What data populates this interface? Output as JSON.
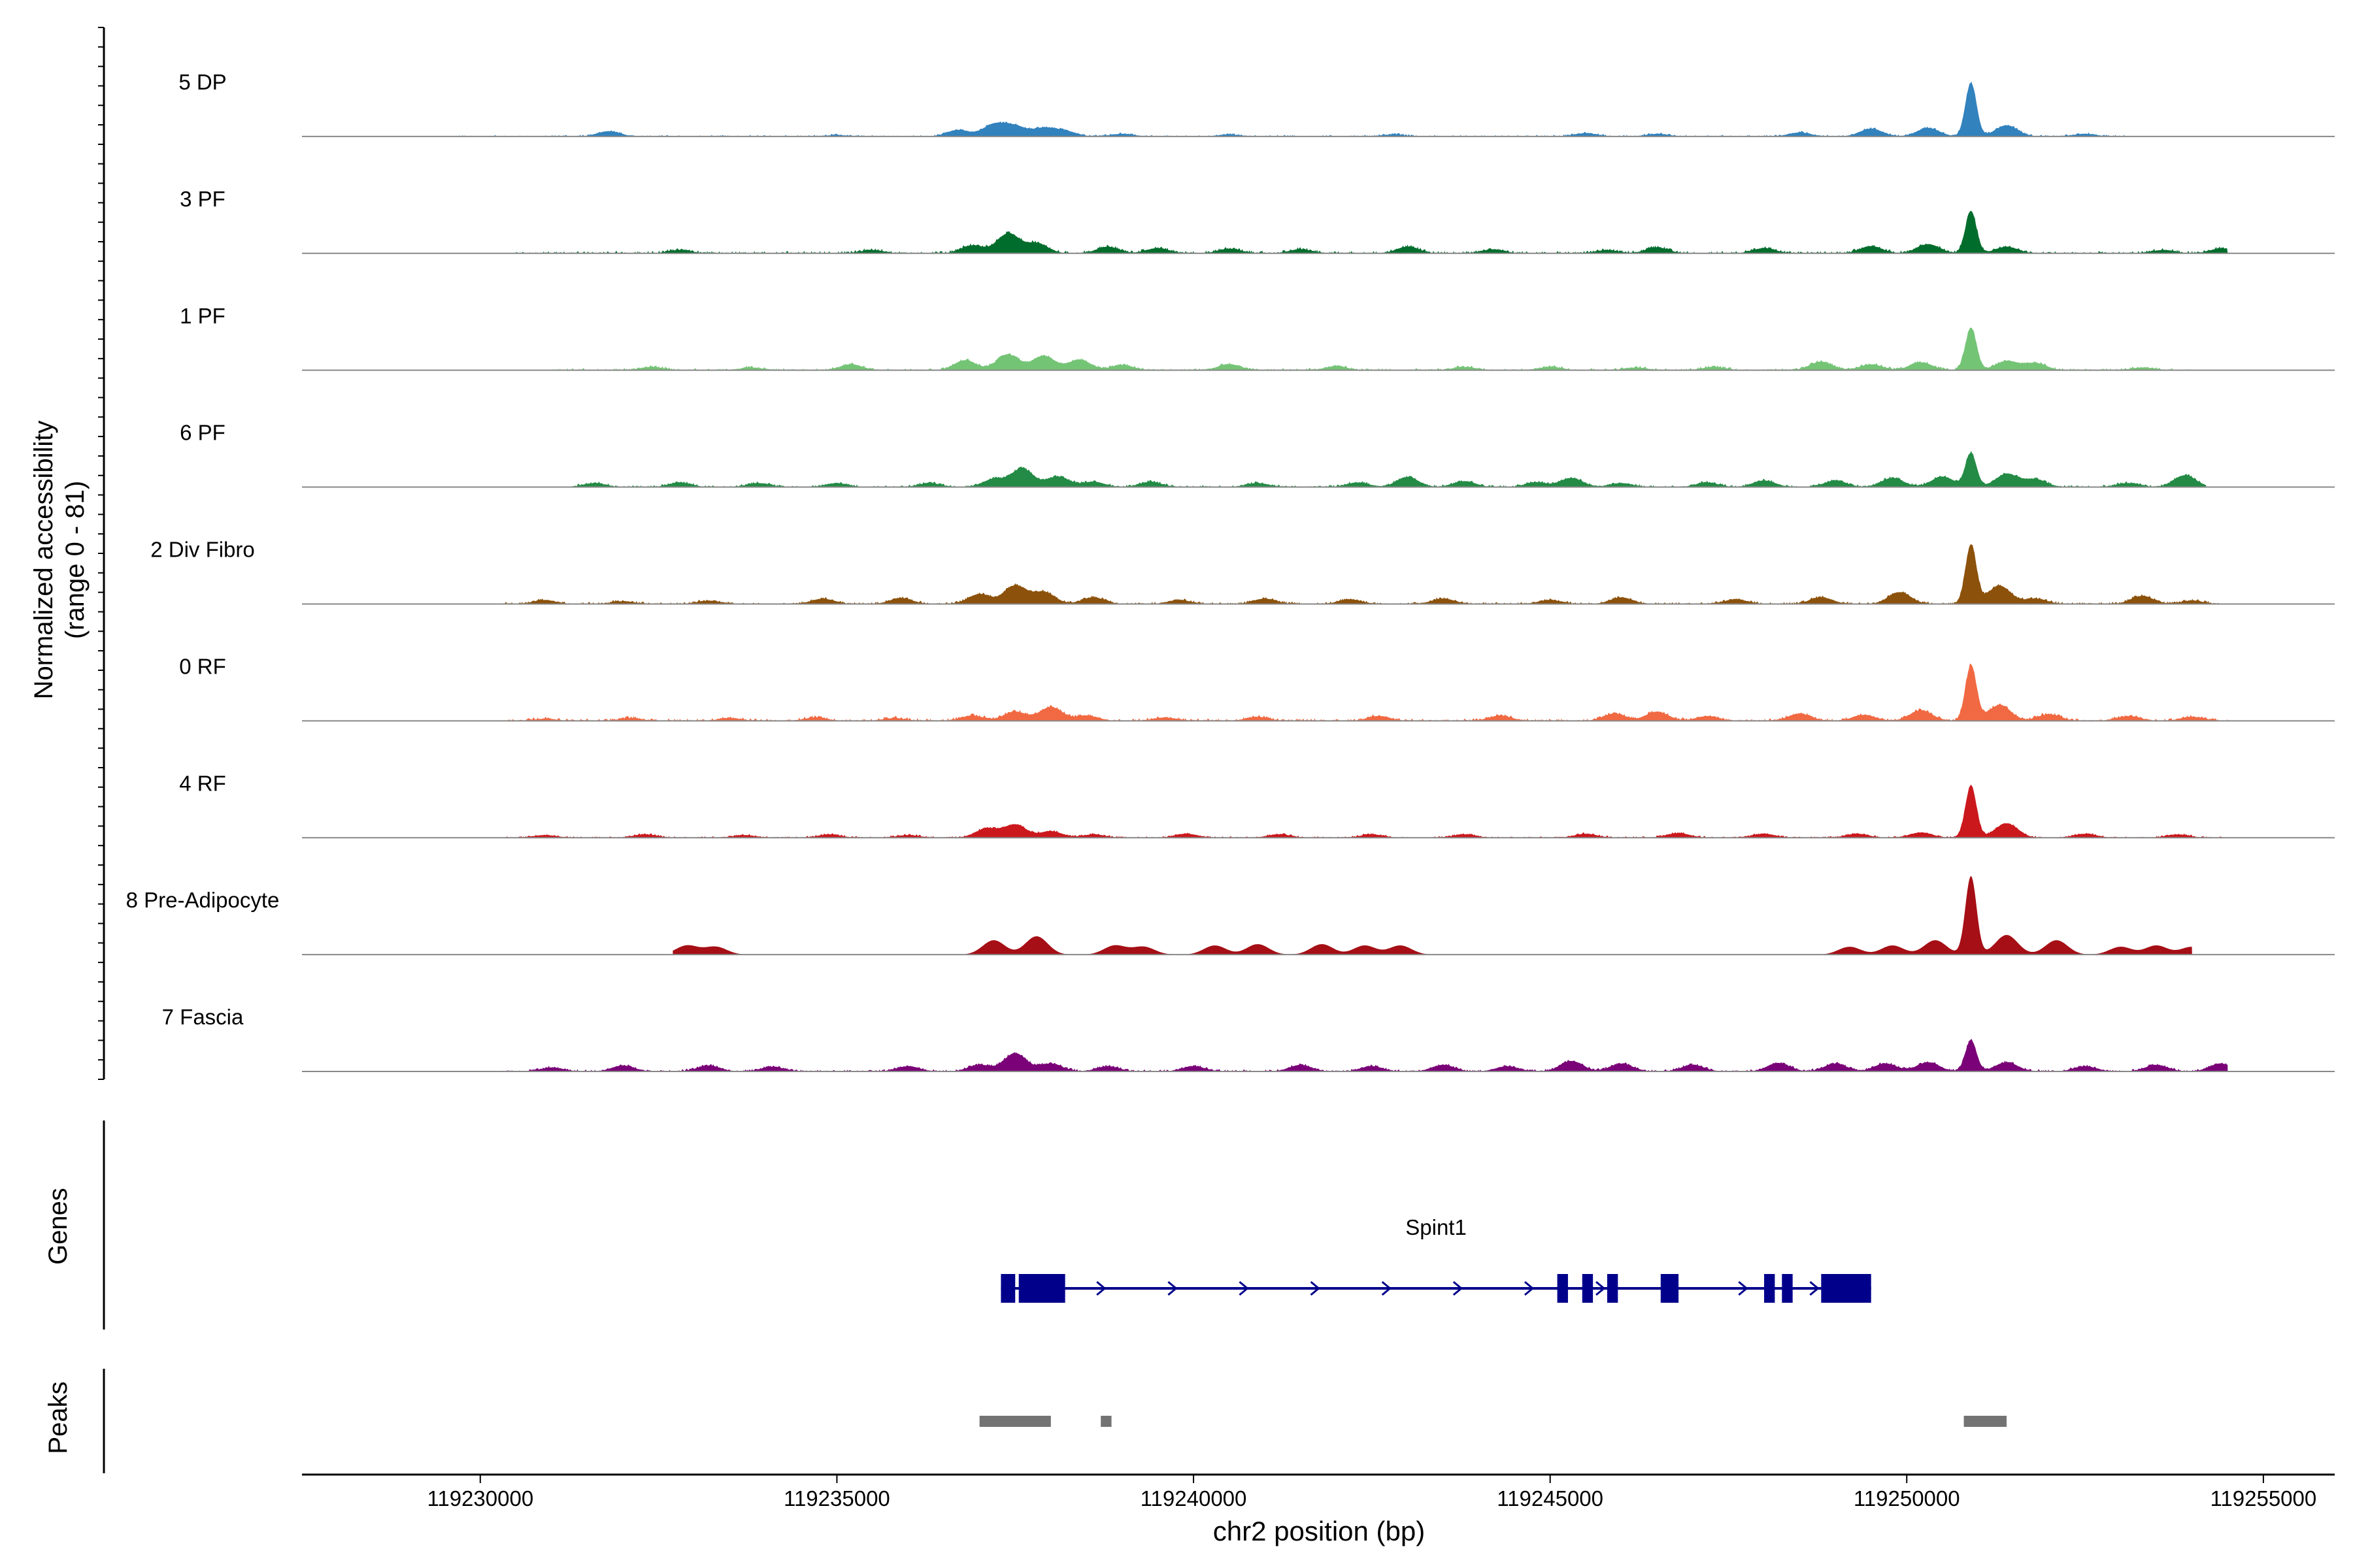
{
  "chart_data": {
    "type": "area",
    "title": "",
    "ylabel_line1": "Normalized accessibility",
    "ylabel_line2": "(range 0 - 81)",
    "xlabel": "chr2 position (bp)",
    "xlim": [
      119227500,
      119256000
    ],
    "xticks": [
      119230000,
      119235000,
      119240000,
      119245000,
      119250000,
      119255000
    ],
    "xtick_labels": [
      "119230000",
      "119235000",
      "119240000",
      "119245000",
      "119250000",
      "119255000"
    ],
    "track_range": [
      0,
      81
    ],
    "tracks": [
      {
        "name": "5 DP",
        "color": "#3182BD",
        "range": [
          119229700,
          119253100
        ],
        "baseline": 0.4,
        "peaks": [
          [
            119231800,
            8
          ],
          [
            119235000,
            2
          ],
          [
            119236700,
            10
          ],
          [
            119237200,
            18
          ],
          [
            119237500,
            15
          ],
          [
            119237900,
            12
          ],
          [
            119238200,
            8
          ],
          [
            119239000,
            4
          ],
          [
            119240500,
            3
          ],
          [
            119242800,
            3
          ],
          [
            119245500,
            5
          ],
          [
            119246500,
            4
          ],
          [
            119248500,
            6
          ],
          [
            119249500,
            12
          ],
          [
            119250300,
            13
          ],
          [
            119250900,
            82
          ],
          [
            119251400,
            17
          ],
          [
            119252500,
            4
          ]
        ]
      },
      {
        "name": "3 PF",
        "color": "#006D2C",
        "range": [
          119230500,
          119254500
        ],
        "baseline": 0.6,
        "peaks": [
          [
            119232800,
            5
          ],
          [
            119235500,
            5
          ],
          [
            119236900,
            12
          ],
          [
            119237400,
            30
          ],
          [
            119237800,
            15
          ],
          [
            119238800,
            10
          ],
          [
            119239500,
            8
          ],
          [
            119240500,
            7
          ],
          [
            119241500,
            6
          ],
          [
            119243000,
            10
          ],
          [
            119244200,
            6
          ],
          [
            119245800,
            5
          ],
          [
            119246500,
            9
          ],
          [
            119248000,
            8
          ],
          [
            119249500,
            11
          ],
          [
            119250300,
            14
          ],
          [
            119250900,
            65
          ],
          [
            119251400,
            10
          ],
          [
            119253600,
            5
          ],
          [
            119254400,
            7
          ]
        ]
      },
      {
        "name": "1 PF",
        "color": "#74C476",
        "range": [
          119231000,
          119254000
        ],
        "baseline": 0.5,
        "peaks": [
          [
            119232400,
            5
          ],
          [
            119233800,
            4
          ],
          [
            119235200,
            9
          ],
          [
            119236800,
            15
          ],
          [
            119237400,
            24
          ],
          [
            119237900,
            22
          ],
          [
            119238400,
            16
          ],
          [
            119239000,
            8
          ],
          [
            119240500,
            9
          ],
          [
            119242000,
            6
          ],
          [
            119243800,
            5
          ],
          [
            119245000,
            5
          ],
          [
            119246200,
            4
          ],
          [
            119247300,
            5
          ],
          [
            119248800,
            13
          ],
          [
            119249500,
            9
          ],
          [
            119250200,
            12
          ],
          [
            119250900,
            65
          ],
          [
            119251400,
            14
          ],
          [
            119251800,
            11
          ],
          [
            119253300,
            4
          ]
        ]
      },
      {
        "name": "6 PF",
        "color": "#238B45",
        "range": [
          119231200,
          119254200
        ],
        "baseline": 0.5,
        "peaks": [
          [
            119231600,
            6
          ],
          [
            119232800,
            7
          ],
          [
            119233900,
            6
          ],
          [
            119235000,
            6
          ],
          [
            119236300,
            6
          ],
          [
            119237200,
            12
          ],
          [
            119237600,
            28
          ],
          [
            119238100,
            16
          ],
          [
            119238600,
            8
          ],
          [
            119239400,
            8
          ],
          [
            119240900,
            6
          ],
          [
            119242300,
            7
          ],
          [
            119243000,
            15
          ],
          [
            119243800,
            9
          ],
          [
            119244800,
            7
          ],
          [
            119245300,
            14
          ],
          [
            119246000,
            6
          ],
          [
            119247200,
            7
          ],
          [
            119248000,
            10
          ],
          [
            119249000,
            10
          ],
          [
            119249800,
            14
          ],
          [
            119250500,
            16
          ],
          [
            119250900,
            52
          ],
          [
            119251400,
            20
          ],
          [
            119251800,
            12
          ],
          [
            119253100,
            6
          ],
          [
            119253900,
            18
          ]
        ]
      },
      {
        "name": "2 Div Fibro",
        "color": "#8C510A",
        "range": [
          119230300,
          119254500
        ],
        "baseline": 0.5,
        "peaks": [
          [
            119230900,
            6
          ],
          [
            119232000,
            4
          ],
          [
            119233200,
            5
          ],
          [
            119234800,
            8
          ],
          [
            119235900,
            9
          ],
          [
            119237000,
            15
          ],
          [
            119237500,
            28
          ],
          [
            119237900,
            18
          ],
          [
            119238600,
            10
          ],
          [
            119239800,
            6
          ],
          [
            119241000,
            8
          ],
          [
            119242200,
            7
          ],
          [
            119243500,
            8
          ],
          [
            119245000,
            6
          ],
          [
            119246000,
            10
          ],
          [
            119247600,
            7
          ],
          [
            119248800,
            10
          ],
          [
            119249900,
            18
          ],
          [
            119250900,
            90
          ],
          [
            119251300,
            28
          ],
          [
            119251800,
            8
          ],
          [
            119253300,
            12
          ],
          [
            119254000,
            5
          ]
        ]
      },
      {
        "name": "0 RF",
        "color": "#F16942",
        "range": [
          119230300,
          119254500
        ],
        "baseline": 0.6,
        "peaks": [
          [
            119230900,
            3
          ],
          [
            119232100,
            4
          ],
          [
            119233500,
            4
          ],
          [
            119234700,
            5
          ],
          [
            119235800,
            4
          ],
          [
            119236900,
            8
          ],
          [
            119237500,
            14
          ],
          [
            119238000,
            21
          ],
          [
            119238500,
            8
          ],
          [
            119239600,
            5
          ],
          [
            119240900,
            6
          ],
          [
            119242600,
            7
          ],
          [
            119244300,
            8
          ],
          [
            119245900,
            11
          ],
          [
            119246500,
            14
          ],
          [
            119247200,
            7
          ],
          [
            119248500,
            11
          ],
          [
            119249400,
            9
          ],
          [
            119250200,
            16
          ],
          [
            119250900,
            85
          ],
          [
            119251300,
            24
          ],
          [
            119252000,
            10
          ],
          [
            119253100,
            7
          ],
          [
            119254000,
            6
          ]
        ]
      },
      {
        "name": "4 RF",
        "color": "#CB181D",
        "range": [
          119230300,
          119254500
        ],
        "baseline": 0.4,
        "peaks": [
          [
            119230900,
            4
          ],
          [
            119232300,
            5
          ],
          [
            119233700,
            4
          ],
          [
            119234900,
            5
          ],
          [
            119236000,
            4
          ],
          [
            119237100,
            14
          ],
          [
            119237500,
            20
          ],
          [
            119238000,
            10
          ],
          [
            119238600,
            5
          ],
          [
            119239900,
            6
          ],
          [
            119241200,
            5
          ],
          [
            119242500,
            5
          ],
          [
            119243800,
            5
          ],
          [
            119245500,
            6
          ],
          [
            119246800,
            7
          ],
          [
            119248000,
            6
          ],
          [
            119249300,
            6
          ],
          [
            119250200,
            8
          ],
          [
            119250900,
            80
          ],
          [
            119251400,
            22
          ],
          [
            119252500,
            6
          ],
          [
            119253800,
            5
          ]
        ]
      },
      {
        "name": "8 Pre-Adipocyte",
        "color": "#A50F15",
        "range": [
          119232700,
          119254000
        ],
        "baseline": 0,
        "peaks": [
          [
            119232900,
            14
          ],
          [
            119233300,
            12
          ],
          [
            119237200,
            22
          ],
          [
            119237800,
            28
          ],
          [
            119238900,
            14
          ],
          [
            119239300,
            12
          ],
          [
            119240300,
            14
          ],
          [
            119240900,
            16
          ],
          [
            119241800,
            16
          ],
          [
            119242400,
            14
          ],
          [
            119242900,
            14
          ],
          [
            119249200,
            12
          ],
          [
            119249800,
            14
          ],
          [
            119250400,
            22
          ],
          [
            119250900,
            120
          ],
          [
            119251400,
            30
          ],
          [
            119252100,
            22
          ],
          [
            119253000,
            12
          ],
          [
            119253500,
            14
          ],
          [
            119254000,
            12
          ]
        ]
      },
      {
        "name": "7 Fascia",
        "color": "#7A0177",
        "range": [
          119230300,
          119254500
        ],
        "baseline": 0.5,
        "peaks": [
          [
            119231000,
            6
          ],
          [
            119232000,
            9
          ],
          [
            119233200,
            9
          ],
          [
            119234100,
            7
          ],
          [
            119236000,
            8
          ],
          [
            119237000,
            10
          ],
          [
            119237500,
            28
          ],
          [
            119238000,
            12
          ],
          [
            119238800,
            8
          ],
          [
            119240000,
            8
          ],
          [
            119241500,
            10
          ],
          [
            119242500,
            8
          ],
          [
            119243500,
            10
          ],
          [
            119244400,
            8
          ],
          [
            119245300,
            16
          ],
          [
            119246000,
            12
          ],
          [
            119247000,
            10
          ],
          [
            119248200,
            13
          ],
          [
            119249000,
            12
          ],
          [
            119249700,
            12
          ],
          [
            119250300,
            14
          ],
          [
            119250900,
            48
          ],
          [
            119251400,
            14
          ],
          [
            119252500,
            8
          ],
          [
            119253500,
            10
          ],
          [
            119254400,
            12
          ]
        ]
      }
    ],
    "genes_label": "Genes",
    "gene": {
      "name": "Spint1",
      "start": 119237300,
      "end": 119249500,
      "exons": [
        [
          119237300,
          119237500
        ],
        [
          119237550,
          119238200
        ],
        [
          119245100,
          119245250
        ],
        [
          119245450,
          119245600
        ],
        [
          119245800,
          119245950
        ],
        [
          119246550,
          119246800
        ],
        [
          119248000,
          119248150
        ],
        [
          119248250,
          119248400
        ],
        [
          119248800,
          119249500
        ]
      ],
      "color": "#00008B"
    },
    "peaks_label": "Peaks",
    "peaks": [
      [
        119237000,
        119238000
      ],
      [
        119238700,
        119238850
      ],
      [
        119250800,
        119251400
      ]
    ],
    "peaks_color": "#737373"
  }
}
